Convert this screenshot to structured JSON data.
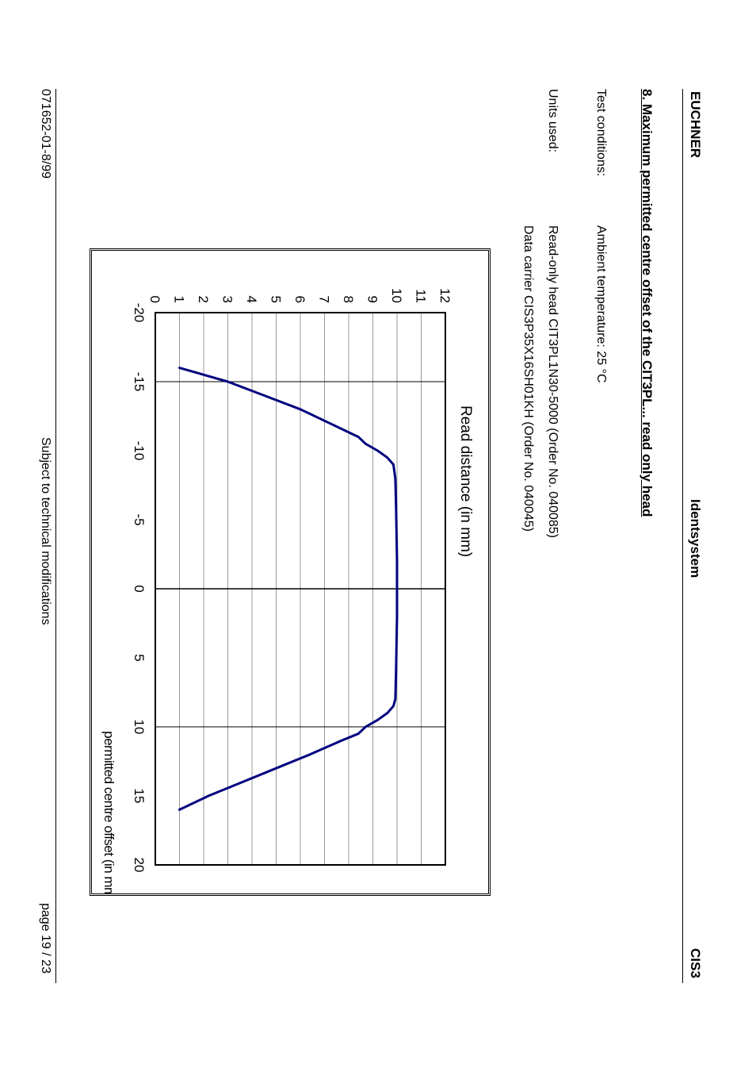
{
  "header": {
    "left": "EUCHNER",
    "center": "Identsystem",
    "right": "CIS3"
  },
  "section": {
    "title": "8. Maximum permitted centre offset of the CIT3PL... read only head",
    "test_conditions_label": "Test conditions:",
    "test_conditions_value": "Ambient temperature: 25 °C",
    "units_label": "Units used:",
    "units_line1": "Read-only head CIT3PL1N30-5000  (Order No. 040085)",
    "units_line2": "Data carrier CIS3P35X16SH01KH   (Order No. 040045)"
  },
  "chart_data": {
    "type": "line",
    "title": "",
    "xlabel": "permitted centre offset (in mm)",
    "ylabel": "Read distance (in mm)",
    "xlim": [
      -20,
      20
    ],
    "ylim": [
      0,
      12
    ],
    "x_ticks": [
      "-20",
      "-15",
      "-10",
      "-5",
      "0",
      "5",
      "10",
      "15",
      "20"
    ],
    "y_ticks": [
      "0",
      "1",
      "2",
      "3",
      "4",
      "5",
      "6",
      "7",
      "8",
      "9",
      "10",
      "11",
      "12"
    ],
    "grid": true,
    "line_color": "#00007f",
    "series": [
      {
        "x": [
          -16,
          -15,
          -14,
          -13,
          -12,
          -11,
          -10.5,
          -10,
          -9.5,
          -9,
          -8,
          -6,
          -4,
          -2,
          0,
          2,
          4,
          6,
          8,
          8.5,
          9,
          9.5,
          10,
          10.5,
          11,
          12,
          13,
          14,
          15,
          16
        ],
        "y": [
          1.0,
          3.0,
          4.5,
          6.0,
          7.2,
          8.4,
          8.7,
          9.2,
          9.6,
          9.85,
          9.93,
          9.96,
          9.98,
          10.0,
          10.0,
          10.0,
          9.98,
          9.96,
          9.93,
          9.85,
          9.6,
          9.2,
          8.7,
          8.4,
          7.7,
          6.4,
          5.0,
          3.6,
          2.2,
          1.0
        ]
      }
    ]
  },
  "footer": {
    "left": "071652-01-8/99",
    "center": "Subject to technical modifications",
    "right": "page 19 / 23"
  }
}
